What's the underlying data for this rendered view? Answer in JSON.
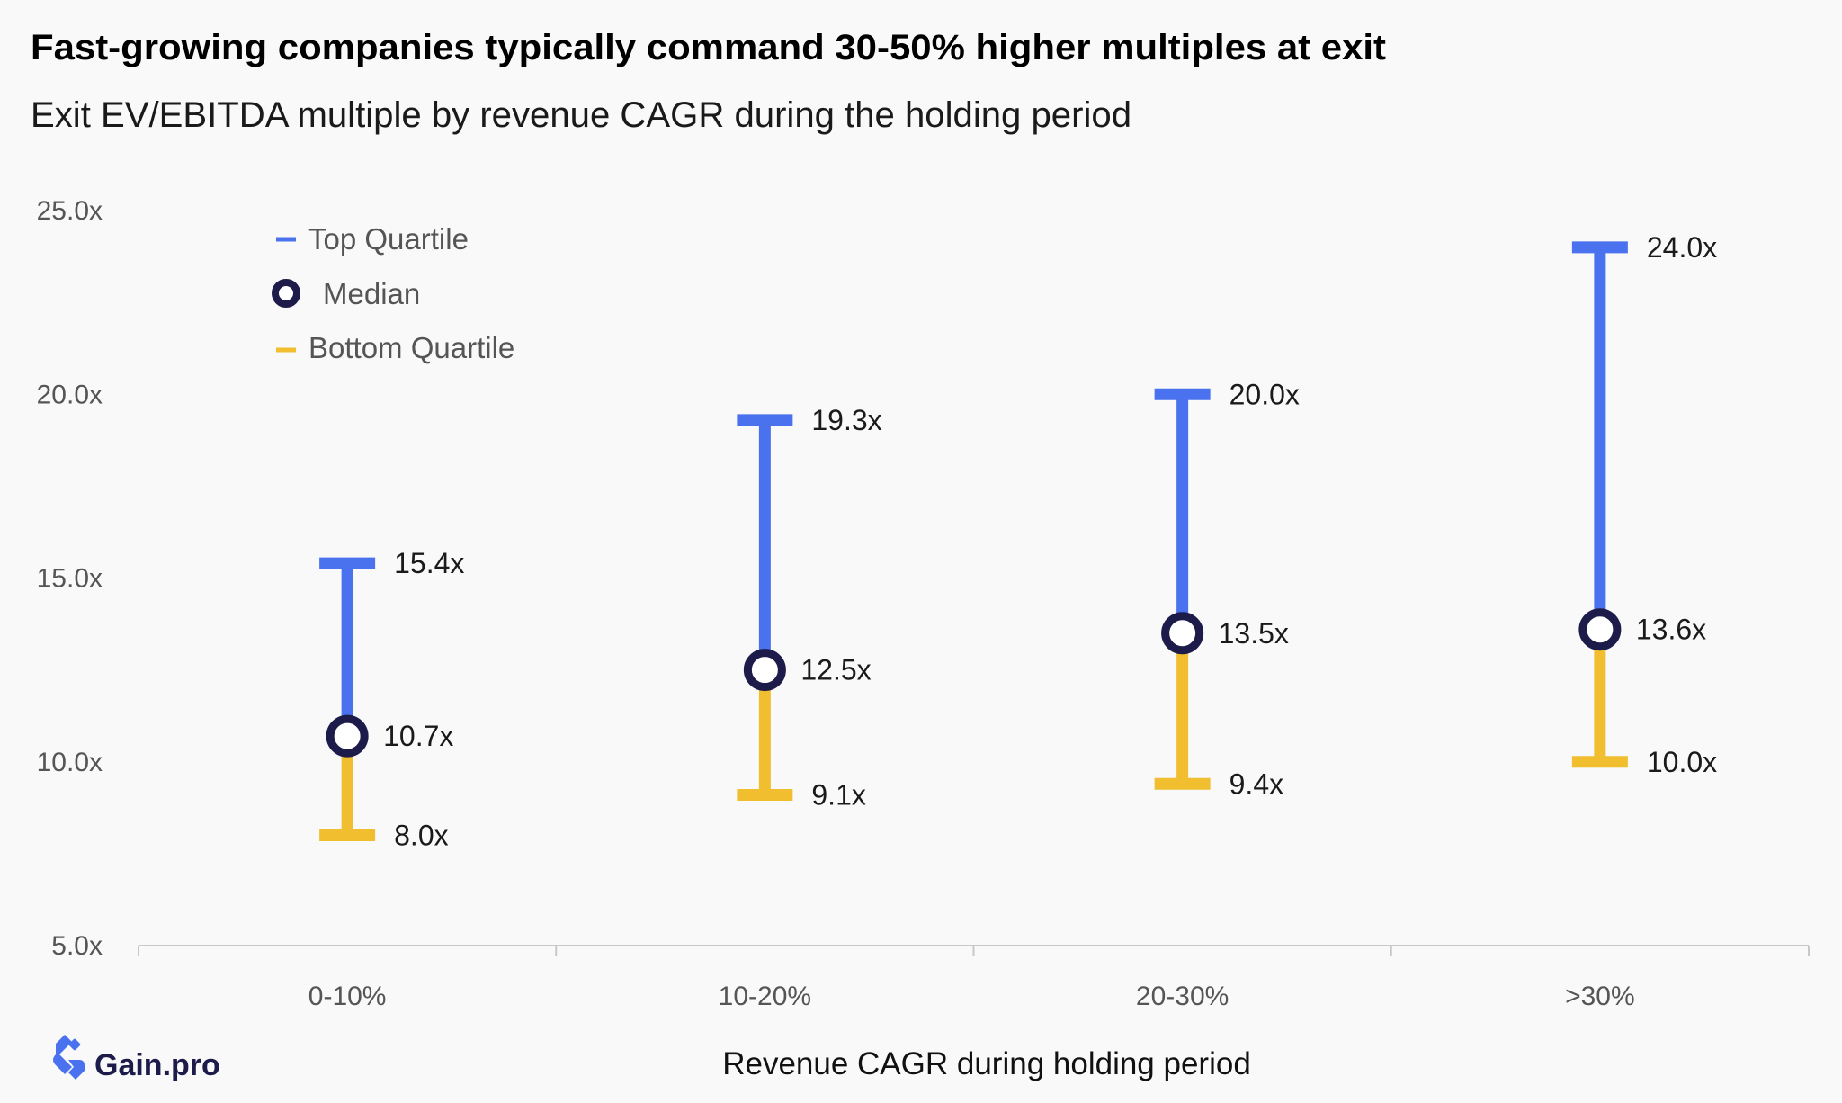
{
  "chart_data": {
    "type": "range",
    "title": "Fast-growing companies typically command 30-50% higher multiples at exit",
    "subtitle": "Exit EV/EBITDA multiple by revenue CAGR during the holding period",
    "xlabel": "Revenue CAGR during holding period",
    "ylabel": "",
    "categories": [
      "0-10%",
      "10-20%",
      "20-30%",
      ">30%"
    ],
    "ylim": [
      5,
      25
    ],
    "yticks": [
      "5.0x",
      "10.0x",
      "15.0x",
      "20.0x",
      "25.0x"
    ],
    "grid": false,
    "legend_position": "top-left",
    "series": [
      {
        "name": "Top Quartile",
        "color": "#4a72ee",
        "values": [
          15.4,
          19.3,
          20.0,
          24.0
        ],
        "labels": [
          "15.4x",
          "19.3x",
          "20.0x",
          "24.0x"
        ]
      },
      {
        "name": "Median",
        "color": "#1d1b4a",
        "values": [
          10.7,
          12.5,
          13.5,
          13.6
        ],
        "labels": [
          "10.7x",
          "12.5x",
          "13.5x",
          "13.6x"
        ]
      },
      {
        "name": "Bottom Quartile",
        "color": "#f0be2f",
        "values": [
          8.0,
          9.1,
          9.4,
          10.0
        ],
        "labels": [
          "8.0x",
          "9.1x",
          "9.4x",
          "10.0x"
        ]
      }
    ]
  },
  "brand": {
    "name": "Gain.pro",
    "icon": "gain-pro-logo-icon",
    "color": "#4a72ee"
  }
}
